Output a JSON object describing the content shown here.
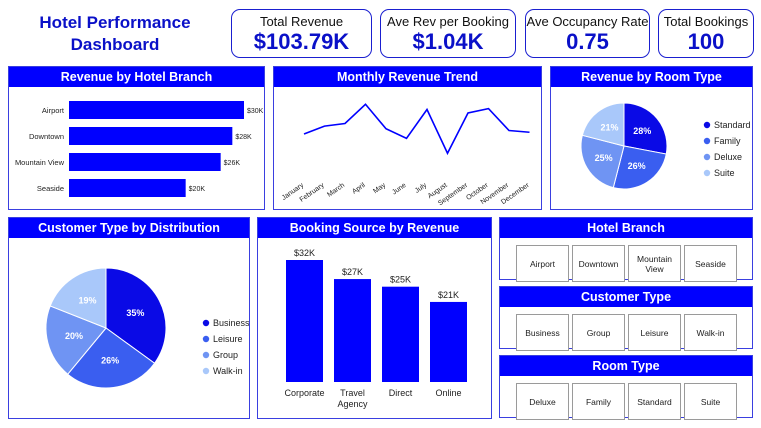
{
  "header": {
    "title_line1": "Hotel Performance",
    "title_line2": "Dashboard"
  },
  "kpis": [
    {
      "label": "Total Revenue",
      "value": "$103.79K"
    },
    {
      "label": "Ave Rev per Booking",
      "value": "$1.04K"
    },
    {
      "label": "Ave Occupancy Rate",
      "value": "0.75"
    },
    {
      "label": "Total Bookings",
      "value": "100"
    }
  ],
  "panels": {
    "revenue_by_branch": "Revenue by Hotel Branch",
    "monthly_trend": "Monthly Revenue Trend",
    "revenue_by_room": "Revenue by Room Type",
    "customer_type": "Customer Type by Distribution",
    "booking_source": "Booking Source by Revenue"
  },
  "slicers": {
    "hotel_branch": {
      "title": "Hotel Branch",
      "options": [
        "Airport",
        "Downtown",
        "Mountain View",
        "Seaside"
      ]
    },
    "customer_type": {
      "title": "Customer Type",
      "options": [
        "Business",
        "Group",
        "Leisure",
        "Walk-in"
      ]
    },
    "room_type": {
      "title": "Room Type",
      "options": [
        "Deluxe",
        "Family",
        "Standard",
        "Suite"
      ]
    }
  },
  "colors": {
    "primary": "#0000ff",
    "c1": "#0a0ae6",
    "c2": "#3a5ef0",
    "c3": "#6f94f3",
    "c4": "#a9c8fa"
  },
  "chart_data": [
    {
      "type": "bar",
      "orientation": "horizontal",
      "categories": [
        "Airport",
        "Downtown",
        "Mountain View",
        "Seaside"
      ],
      "values": [
        30,
        28,
        26,
        20
      ],
      "labels": [
        "$30K",
        "$28K",
        "$26K",
        "$20K"
      ]
    },
    {
      "type": "line",
      "categories": [
        "January",
        "February",
        "March",
        "April",
        "May",
        "June",
        "July",
        "August",
        "September",
        "October",
        "November",
        "December"
      ],
      "values": [
        8.0,
        8.9,
        9.2,
        11.4,
        8.6,
        7.5,
        10.8,
        5.8,
        10.4,
        10.9,
        8.4,
        8.2
      ]
    },
    {
      "type": "pie",
      "categories": [
        "Standard",
        "Family",
        "Deluxe",
        "Suite"
      ],
      "values": [
        28,
        26,
        25,
        21
      ],
      "labels": [
        "28%",
        "26%",
        "25%",
        "21%"
      ],
      "legend": "right"
    },
    {
      "type": "pie",
      "categories": [
        "Business",
        "Leisure",
        "Group",
        "Walk-in"
      ],
      "values": [
        35,
        26,
        20,
        19
      ],
      "labels": [
        "35%",
        "26%",
        "20%",
        "19%"
      ],
      "legend": "right"
    },
    {
      "type": "bar",
      "categories": [
        "Corporate",
        "Travel Agency",
        "Direct",
        "Online"
      ],
      "values": [
        32,
        27,
        25,
        21
      ],
      "labels": [
        "$32K",
        "$27K",
        "$25K",
        "$21K"
      ]
    }
  ]
}
